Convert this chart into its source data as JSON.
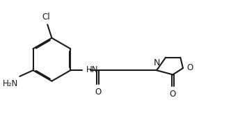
{
  "bg": "#ffffff",
  "lc": "#1a1a1a",
  "lw": 1.5,
  "fs": 8.0,
  "sep": 0.05,
  "figsize": [
    3.32,
    1.9
  ],
  "dpi": 100,
  "xlim": [
    -0.3,
    10.2
  ],
  "ylim": [
    0.2,
    6.2
  ]
}
